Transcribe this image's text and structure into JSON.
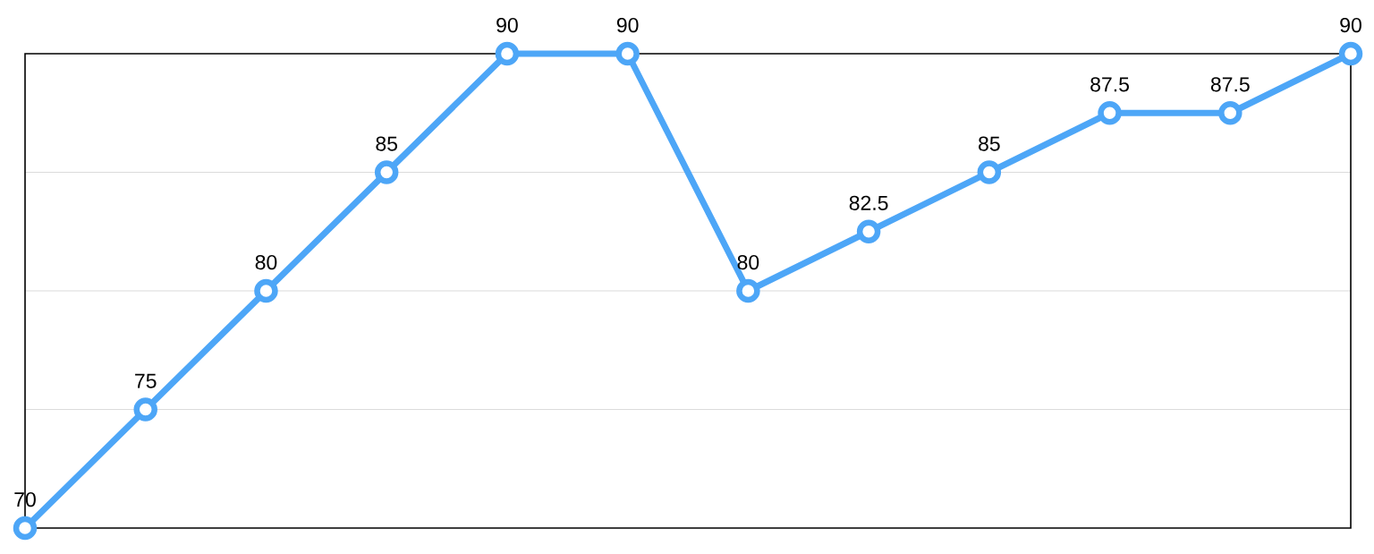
{
  "chart_data": {
    "type": "line",
    "categories": [
      null,
      null,
      null,
      null,
      null,
      null,
      null,
      null,
      null,
      null,
      null,
      null
    ],
    "values": [
      70,
      75,
      80,
      85,
      90,
      90,
      80,
      82.5,
      85,
      87.5,
      87.5,
      90
    ],
    "color": "#4da6f7",
    "ylim": [
      70,
      90
    ],
    "yticks": [
      75,
      80,
      85
    ],
    "grid": "y",
    "tick_labels": false,
    "data_labels": true,
    "marker": "circle",
    "line_style": "solid"
  }
}
